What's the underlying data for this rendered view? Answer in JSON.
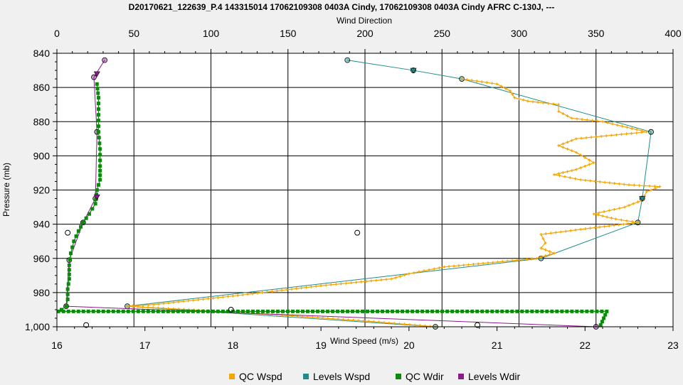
{
  "chart_data": {
    "type": "line",
    "title": "D20170621_122639_P.4 143315014 17062109308 0403A Cindy, 17062109308 0403A Cindy AFRC C-130J, ---",
    "x_top": {
      "label": "Wind Direction",
      "range": [
        0,
        400
      ],
      "ticks": [
        0,
        50,
        100,
        150,
        200,
        250,
        300,
        350,
        400
      ]
    },
    "x_bottom": {
      "label": "Wind Speed (m/s)",
      "range": [
        16,
        23
      ],
      "ticks": [
        16,
        17,
        18,
        19,
        20,
        21,
        22,
        23
      ]
    },
    "y": {
      "label": "Pressure (mb)",
      "range": [
        840,
        1000
      ],
      "ticks": [
        840,
        860,
        880,
        900,
        920,
        940,
        960,
        980,
        "1,000"
      ],
      "inverted": true
    },
    "grid": true,
    "legend_position": "bottom",
    "series": [
      {
        "name": "QC Wspd",
        "color": "#f5a500",
        "axis": "bottom",
        "marker": "small-plus",
        "points": [
          [
            20.6,
            855
          ],
          [
            21.0,
            858
          ],
          [
            21.15,
            862
          ],
          [
            21.2,
            866
          ],
          [
            21.35,
            868
          ],
          [
            21.7,
            870
          ],
          [
            21.7,
            874
          ],
          [
            21.85,
            878
          ],
          [
            22.2,
            880
          ],
          [
            22.7,
            886
          ],
          [
            22.3,
            888
          ],
          [
            21.9,
            890
          ],
          [
            21.7,
            894
          ],
          [
            21.9,
            898
          ],
          [
            22.1,
            904
          ],
          [
            21.9,
            908
          ],
          [
            21.65,
            911
          ],
          [
            21.95,
            914
          ],
          [
            22.5,
            917
          ],
          [
            22.85,
            918
          ],
          [
            22.7,
            921
          ],
          [
            22.65,
            926
          ],
          [
            22.45,
            930
          ],
          [
            22.1,
            934
          ],
          [
            22.35,
            937
          ],
          [
            22.6,
            939
          ],
          [
            21.95,
            943
          ],
          [
            21.5,
            946
          ],
          [
            21.55,
            951
          ],
          [
            21.5,
            954
          ],
          [
            21.65,
            957
          ],
          [
            21.45,
            960
          ],
          [
            20.4,
            965
          ],
          [
            20.0,
            969
          ],
          [
            19.8,
            972
          ],
          [
            19.0,
            976
          ],
          [
            18.0,
            982
          ],
          [
            17.1,
            987
          ],
          [
            16.8,
            988
          ],
          [
            17.5,
            990
          ],
          [
            18.5,
            993
          ],
          [
            19.6,
            997
          ],
          [
            20.3,
            1000
          ]
        ]
      },
      {
        "name": "Levels Wspd",
        "color": "#1e8c8c",
        "axis": "bottom",
        "marker": "circle",
        "points": [
          [
            19.3,
            844
          ],
          [
            20.05,
            850
          ],
          [
            20.6,
            855
          ],
          [
            22.75,
            886
          ],
          [
            22.65,
            925
          ],
          [
            22.6,
            939
          ],
          [
            21.5,
            960
          ],
          [
            16.8,
            988
          ],
          [
            20.3,
            1000
          ]
        ]
      },
      {
        "name": "QC Wdir",
        "color": "#0a8a0a",
        "axis": "top",
        "marker": "small-plus",
        "points": [
          [
            26,
            858
          ],
          [
            27,
            866
          ],
          [
            27,
            876
          ],
          [
            27,
            886
          ],
          [
            28,
            896
          ],
          [
            28,
            906
          ],
          [
            28,
            914
          ],
          [
            26,
            920
          ],
          [
            25,
            928
          ],
          [
            21,
            934
          ],
          [
            17,
            939
          ],
          [
            14,
            944
          ],
          [
            11,
            950
          ],
          [
            9,
            957
          ],
          [
            8,
            964
          ],
          [
            8,
            972
          ],
          [
            7,
            978
          ],
          [
            7,
            984
          ],
          [
            6,
            988
          ],
          [
            3,
            990
          ],
          [
            1,
            991
          ],
          [
            357,
            991
          ],
          [
            355,
            995
          ],
          [
            353,
            999
          ]
        ]
      },
      {
        "name": "Levels Wdir",
        "color": "#8a1a8a",
        "axis": "top",
        "marker": "circle",
        "points": [
          [
            31,
            844
          ],
          [
            24,
            854
          ],
          [
            26,
            886
          ],
          [
            25,
            925
          ],
          [
            17,
            939
          ],
          [
            8,
            961
          ],
          [
            6,
            988
          ],
          [
            350,
            1000
          ]
        ]
      }
    ],
    "open_markers": [
      {
        "axis": "top",
        "points": [
          [
            7,
            945
          ],
          [
            195,
            945
          ],
          [
            113,
            990
          ],
          [
            19,
            999
          ],
          [
            273,
            999
          ]
        ]
      }
    ],
    "triangle_markers": [
      {
        "axis": "bottom",
        "color": "#1e8c8c",
        "points": [
          [
            20.05,
            850
          ],
          [
            22.65,
            925
          ]
        ]
      },
      {
        "axis": "top",
        "color": "#8a1a8a",
        "points": [
          [
            26,
            852
          ],
          [
            26,
            924
          ]
        ]
      }
    ]
  }
}
